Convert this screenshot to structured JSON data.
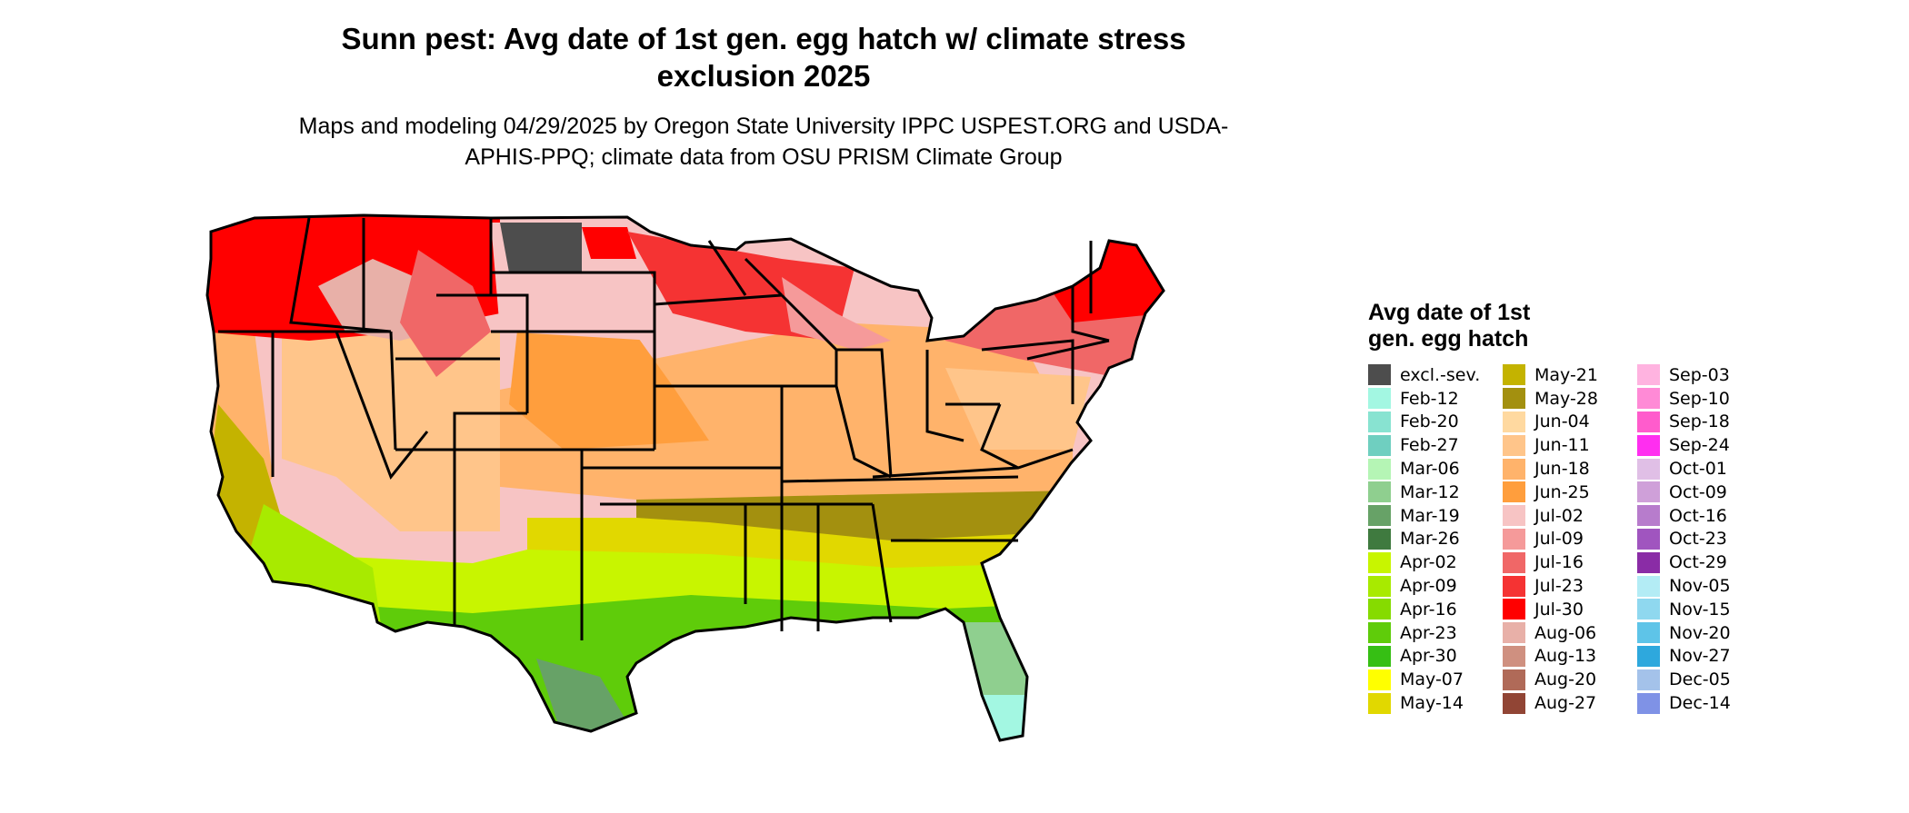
{
  "map": {
    "title": "Sunn pest: Avg date of 1st gen. egg hatch w/ climate stress exclusion 2025",
    "subtitle": "Maps and modeling 04/29/2025 by Oregon State University IPPC USPEST.ORG and USDA-APHIS-PPQ; climate data from OSU PRISM Climate Group"
  },
  "legend": {
    "title": "Avg date of 1st gen. egg hatch",
    "items": [
      {
        "label": "excl.-sev.",
        "color": "#4d4d4d"
      },
      {
        "label": "Feb-12",
        "color": "#a3f7e2"
      },
      {
        "label": "Feb-20",
        "color": "#88e3d1"
      },
      {
        "label": "Feb-27",
        "color": "#6fcfc0"
      },
      {
        "label": "Mar-06",
        "color": "#b5f5b5"
      },
      {
        "label": "Mar-12",
        "color": "#8fcf8f"
      },
      {
        "label": "Mar-19",
        "color": "#67a267"
      },
      {
        "label": "Mar-26",
        "color": "#3f7a3f"
      },
      {
        "label": "Apr-02",
        "color": "#c8f500"
      },
      {
        "label": "Apr-09",
        "color": "#a8ea00"
      },
      {
        "label": "Apr-16",
        "color": "#86db00"
      },
      {
        "label": "Apr-23",
        "color": "#5fcc0a"
      },
      {
        "label": "Apr-30",
        "color": "#36bf14"
      },
      {
        "label": "May-07",
        "color": "#ffff00"
      },
      {
        "label": "May-14",
        "color": "#e1d800"
      },
      {
        "label": "May-21",
        "color": "#c4b300"
      },
      {
        "label": "May-28",
        "color": "#a3900f"
      },
      {
        "label": "Jun-04",
        "color": "#ffd9a0"
      },
      {
        "label": "Jun-11",
        "color": "#ffc58a"
      },
      {
        "label": "Jun-18",
        "color": "#ffb36b"
      },
      {
        "label": "Jun-25",
        "color": "#ff9e3d"
      },
      {
        "label": "Jul-02",
        "color": "#f7c4c4"
      },
      {
        "label": "Jul-09",
        "color": "#f59a9a"
      },
      {
        "label": "Jul-16",
        "color": "#f06767"
      },
      {
        "label": "Jul-23",
        "color": "#f53333"
      },
      {
        "label": "Jul-30",
        "color": "#ff0000"
      },
      {
        "label": "Aug-06",
        "color": "#e8b0a8"
      },
      {
        "label": "Aug-13",
        "color": "#cf9080"
      },
      {
        "label": "Aug-20",
        "color": "#b06a58"
      },
      {
        "label": "Aug-27",
        "color": "#914535"
      },
      {
        "label": "Sep-03",
        "color": "#ffb3e0"
      },
      {
        "label": "Sep-10",
        "color": "#ff8ad6"
      },
      {
        "label": "Sep-18",
        "color": "#ff5ccc"
      },
      {
        "label": "Sep-24",
        "color": "#ff2ef0"
      },
      {
        "label": "Oct-01",
        "color": "#e0bfe6"
      },
      {
        "label": "Oct-09",
        "color": "#cfa0d9"
      },
      {
        "label": "Oct-16",
        "color": "#b77ccc"
      },
      {
        "label": "Oct-23",
        "color": "#a055bf"
      },
      {
        "label": "Oct-29",
        "color": "#8a2ca6"
      },
      {
        "label": "Nov-05",
        "color": "#b3ecf5"
      },
      {
        "label": "Nov-15",
        "color": "#8fd8ef"
      },
      {
        "label": "Nov-20",
        "color": "#5ec4e8"
      },
      {
        "label": "Nov-27",
        "color": "#2ea8dd"
      },
      {
        "label": "Dec-05",
        "color": "#a4c2ea"
      },
      {
        "label": "Dec-14",
        "color": "#7f92e6"
      }
    ]
  },
  "colors": {
    "border": "#000000",
    "background": "#ffffff"
  }
}
